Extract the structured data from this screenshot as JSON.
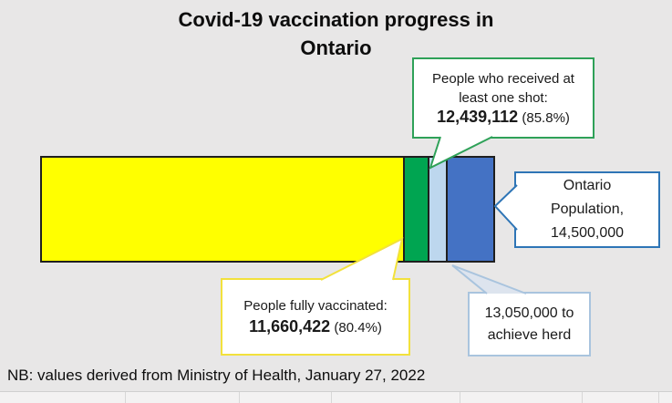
{
  "chart_data": {
    "type": "bar",
    "orientation": "horizontal-stacked",
    "title": "Covid-19 vaccination progress in Ontario",
    "source_note": "NB: values derived from Ministry of Health, January 27, 2022",
    "total": 14500000,
    "axes": "none (single stacked bar, no axis ticks or gridlines)",
    "segments": [
      {
        "name": "people-fully-vaccinated",
        "value": 11660422,
        "color": "#ffff00"
      },
      {
        "name": "additional-people-with-one-shot",
        "value": 778690,
        "color": "#00a551"
      },
      {
        "name": "remaining-to-herd-threshold",
        "value": 610888,
        "color": "#bdd7ee"
      },
      {
        "name": "population-beyond-herd-threshold",
        "value": 1450000,
        "color": "#4472c4"
      }
    ],
    "annotations": {
      "one_shot": {
        "line1": "People who received at",
        "line2": "least one shot:",
        "value": "12,439,112",
        "percent": "(85.8%)"
      },
      "fully_vaccinated": {
        "line1": "People fully vaccinated:",
        "value": "11,660,422",
        "percent": "(80.4%)"
      },
      "population": {
        "line1": "Ontario",
        "line2": "Population,",
        "line3": "14,500,000"
      },
      "herd": {
        "line1": "13,050,000 to",
        "line2": "achieve herd"
      }
    },
    "colors": {
      "background": "#e8e7e7",
      "bar_outline": "#1f1f1f",
      "green_callout_border": "#2ea158",
      "blue_callout_border": "#2e75b6",
      "yellow_callout_border": "#f2e13c",
      "herd_callout_border": "#a9c4de",
      "herd_tail_fill": "#dde4ee"
    }
  }
}
